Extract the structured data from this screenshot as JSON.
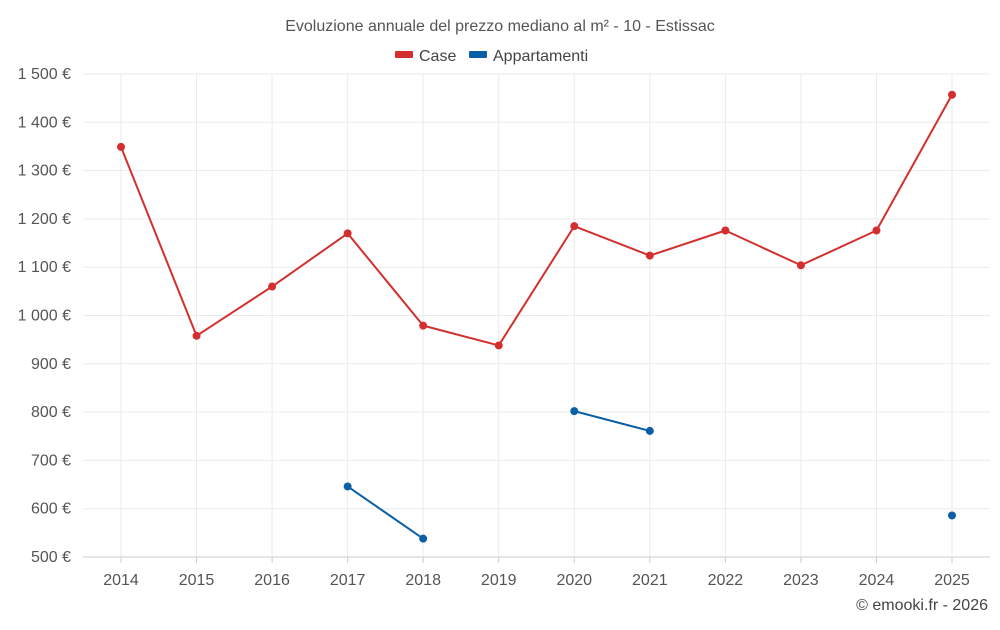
{
  "chart_data": {
    "type": "line",
    "title": "Evoluzione annuale del prezzo mediano al m² - 10 - Estissac",
    "categories": [
      "2014",
      "2015",
      "2016",
      "2017",
      "2018",
      "2019",
      "2020",
      "2021",
      "2022",
      "2023",
      "2024",
      "2025"
    ],
    "ylim": [
      500,
      1500
    ],
    "yticks": [
      500,
      600,
      700,
      800,
      900,
      1000,
      1100,
      1200,
      1300,
      1400,
      1500
    ],
    "ytick_labels": [
      "500 €",
      "600 €",
      "700 €",
      "800 €",
      "900 €",
      "1 000 €",
      "1 100 €",
      "1 200 €",
      "1 300 €",
      "1 400 €",
      "1 500 €"
    ],
    "grid": true,
    "legend_position": "top-center",
    "series": [
      {
        "name": "Case",
        "color": "#d32f2f",
        "values": [
          1349,
          958,
          1060,
          1170,
          979,
          938,
          1185,
          1124,
          1176,
          1104,
          1176,
          1457
        ]
      },
      {
        "name": "Appartamenti",
        "color": "#0b5fa5",
        "values": [
          null,
          null,
          null,
          646,
          538,
          null,
          802,
          761,
          null,
          null,
          null,
          586
        ]
      }
    ]
  },
  "credit": "© emooki.fr - 2026"
}
